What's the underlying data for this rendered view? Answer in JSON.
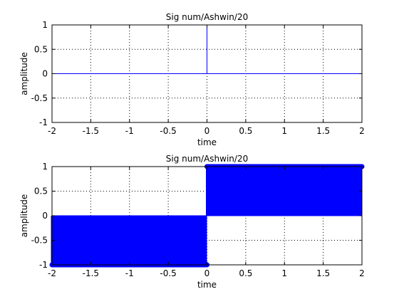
{
  "chart_data": [
    {
      "type": "line",
      "title": "Sig num/Ashwin/20",
      "xlabel": "time",
      "ylabel": "amplitude",
      "xlim": [
        -2,
        2
      ],
      "ylim": [
        -1,
        1
      ],
      "xticks": [
        -2,
        -1.5,
        -1,
        -0.5,
        0,
        0.5,
        1,
        1.5,
        2
      ],
      "xticklabels": [
        "-2",
        "-1.5",
        "-1",
        "-0.5",
        "0",
        "0.5",
        "1",
        "1.5",
        "2"
      ],
      "yticks": [
        -1,
        -0.5,
        0,
        0.5,
        1
      ],
      "yticklabels": [
        "-1",
        "-0.5",
        "0",
        "0.5",
        "1"
      ],
      "grid": "dotted",
      "series": [
        {
          "x": [
            -2,
            0,
            0,
            0,
            2
          ],
          "y": [
            0,
            0,
            1,
            0,
            0
          ],
          "marker": "none"
        }
      ]
    },
    {
      "type": "stem",
      "title": "Sig num/Ashwin/20",
      "xlabel": "time",
      "ylabel": "amplitude",
      "xlim": [
        -2,
        2
      ],
      "ylim": [
        -1,
        1
      ],
      "xticks": [
        -2,
        -1.5,
        -1,
        -0.5,
        0,
        0.5,
        1,
        1.5,
        2
      ],
      "xticklabels": [
        "-2",
        "-1.5",
        "-1",
        "-0.5",
        "0",
        "0.5",
        "1",
        "1.5",
        "2"
      ],
      "yticks": [
        -1,
        -0.5,
        0,
        0.5,
        1
      ],
      "yticklabels": [
        "-1",
        "-0.5",
        "0",
        "0.5",
        "1"
      ],
      "grid": "dotted",
      "series": [
        {
          "x_range": [
            -2,
            0
          ],
          "value": -1,
          "marker": "circle"
        },
        {
          "x_range": [
            0,
            2
          ],
          "value": 1,
          "marker": "circle"
        }
      ]
    }
  ],
  "colors": {
    "series": "#0000ff",
    "axes": "#000000",
    "grid": "#000000",
    "background": "#ffffff"
  }
}
